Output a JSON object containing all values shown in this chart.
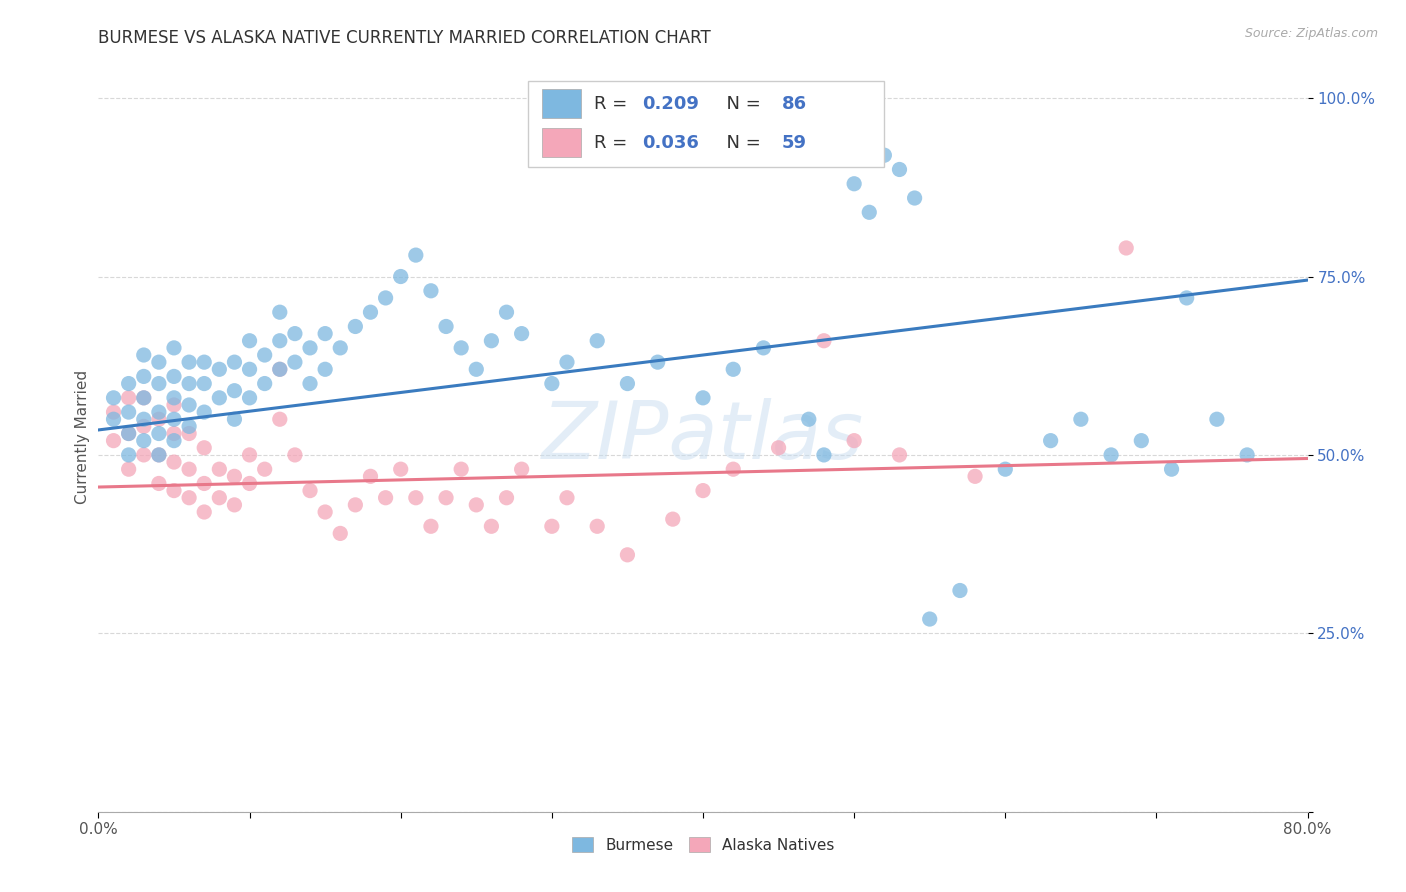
{
  "title": "BURMESE VS ALASKA NATIVE CURRENTLY MARRIED CORRELATION CHART",
  "source": "Source: ZipAtlas.com",
  "ylabel": "Currently Married",
  "watermark": "ZIPatlas",
  "xlim": [
    0.0,
    0.8
  ],
  "ylim": [
    0.0,
    1.05
  ],
  "xticks": [
    0.0,
    0.1,
    0.2,
    0.3,
    0.4,
    0.5,
    0.6,
    0.7,
    0.8
  ],
  "xticklabels": [
    "0.0%",
    "",
    "",
    "",
    "",
    "",
    "",
    "",
    "80.0%"
  ],
  "yticks": [
    0.0,
    0.25,
    0.5,
    0.75,
    1.0
  ],
  "yticklabels": [
    "",
    "25.0%",
    "50.0%",
    "75.0%",
    "100.0%"
  ],
  "blue_color": "#7eb8e0",
  "pink_color": "#f4a7b9",
  "blue_line_color": "#3a7bbf",
  "pink_line_color": "#e8788a",
  "legend_R_blue": "0.209",
  "legend_N_blue": "86",
  "legend_R_pink": "0.036",
  "legend_N_pink": "59",
  "blue_scatter_x": [
    0.01,
    0.01,
    0.02,
    0.02,
    0.02,
    0.02,
    0.03,
    0.03,
    0.03,
    0.03,
    0.03,
    0.04,
    0.04,
    0.04,
    0.04,
    0.04,
    0.05,
    0.05,
    0.05,
    0.05,
    0.05,
    0.06,
    0.06,
    0.06,
    0.06,
    0.07,
    0.07,
    0.07,
    0.08,
    0.08,
    0.09,
    0.09,
    0.09,
    0.1,
    0.1,
    0.1,
    0.11,
    0.11,
    0.12,
    0.12,
    0.12,
    0.13,
    0.13,
    0.14,
    0.14,
    0.15,
    0.15,
    0.16,
    0.17,
    0.18,
    0.19,
    0.2,
    0.21,
    0.22,
    0.23,
    0.24,
    0.25,
    0.26,
    0.27,
    0.28,
    0.3,
    0.31,
    0.33,
    0.35,
    0.37,
    0.4,
    0.42,
    0.44,
    0.47,
    0.48,
    0.5,
    0.51,
    0.52,
    0.53,
    0.54,
    0.55,
    0.57,
    0.6,
    0.63,
    0.65,
    0.67,
    0.69,
    0.71,
    0.72,
    0.74,
    0.76
  ],
  "blue_scatter_y": [
    0.55,
    0.58,
    0.5,
    0.53,
    0.56,
    0.6,
    0.52,
    0.55,
    0.58,
    0.61,
    0.64,
    0.5,
    0.53,
    0.56,
    0.6,
    0.63,
    0.52,
    0.55,
    0.58,
    0.61,
    0.65,
    0.54,
    0.57,
    0.6,
    0.63,
    0.56,
    0.6,
    0.63,
    0.58,
    0.62,
    0.55,
    0.59,
    0.63,
    0.58,
    0.62,
    0.66,
    0.6,
    0.64,
    0.62,
    0.66,
    0.7,
    0.63,
    0.67,
    0.6,
    0.65,
    0.62,
    0.67,
    0.65,
    0.68,
    0.7,
    0.72,
    0.75,
    0.78,
    0.73,
    0.68,
    0.65,
    0.62,
    0.66,
    0.7,
    0.67,
    0.6,
    0.63,
    0.66,
    0.6,
    0.63,
    0.58,
    0.62,
    0.65,
    0.55,
    0.5,
    0.88,
    0.84,
    0.92,
    0.9,
    0.86,
    0.27,
    0.31,
    0.48,
    0.52,
    0.55,
    0.5,
    0.52,
    0.48,
    0.72,
    0.55,
    0.5
  ],
  "pink_scatter_x": [
    0.01,
    0.01,
    0.02,
    0.02,
    0.02,
    0.03,
    0.03,
    0.03,
    0.04,
    0.04,
    0.04,
    0.05,
    0.05,
    0.05,
    0.05,
    0.06,
    0.06,
    0.06,
    0.07,
    0.07,
    0.07,
    0.08,
    0.08,
    0.09,
    0.09,
    0.1,
    0.1,
    0.11,
    0.12,
    0.12,
    0.13,
    0.14,
    0.15,
    0.16,
    0.17,
    0.18,
    0.19,
    0.2,
    0.21,
    0.22,
    0.23,
    0.24,
    0.25,
    0.26,
    0.27,
    0.28,
    0.3,
    0.31,
    0.33,
    0.35,
    0.38,
    0.4,
    0.42,
    0.45,
    0.48,
    0.5,
    0.53,
    0.58,
    0.68
  ],
  "pink_scatter_y": [
    0.52,
    0.56,
    0.48,
    0.53,
    0.58,
    0.5,
    0.54,
    0.58,
    0.46,
    0.5,
    0.55,
    0.45,
    0.49,
    0.53,
    0.57,
    0.44,
    0.48,
    0.53,
    0.42,
    0.46,
    0.51,
    0.44,
    0.48,
    0.43,
    0.47,
    0.46,
    0.5,
    0.48,
    0.55,
    0.62,
    0.5,
    0.45,
    0.42,
    0.39,
    0.43,
    0.47,
    0.44,
    0.48,
    0.44,
    0.4,
    0.44,
    0.48,
    0.43,
    0.4,
    0.44,
    0.48,
    0.4,
    0.44,
    0.4,
    0.36,
    0.41,
    0.45,
    0.48,
    0.51,
    0.66,
    0.52,
    0.5,
    0.47,
    0.79
  ],
  "blue_trend_x": [
    0.0,
    0.8
  ],
  "blue_trend_y": [
    0.535,
    0.745
  ],
  "pink_trend_x": [
    0.0,
    0.8
  ],
  "pink_trend_y": [
    0.455,
    0.495
  ],
  "grid_color": "#d8d8d8",
  "bg_color": "#ffffff",
  "title_fontsize": 12,
  "axis_label_fontsize": 11,
  "tick_fontsize": 11,
  "legend_fontsize": 13
}
